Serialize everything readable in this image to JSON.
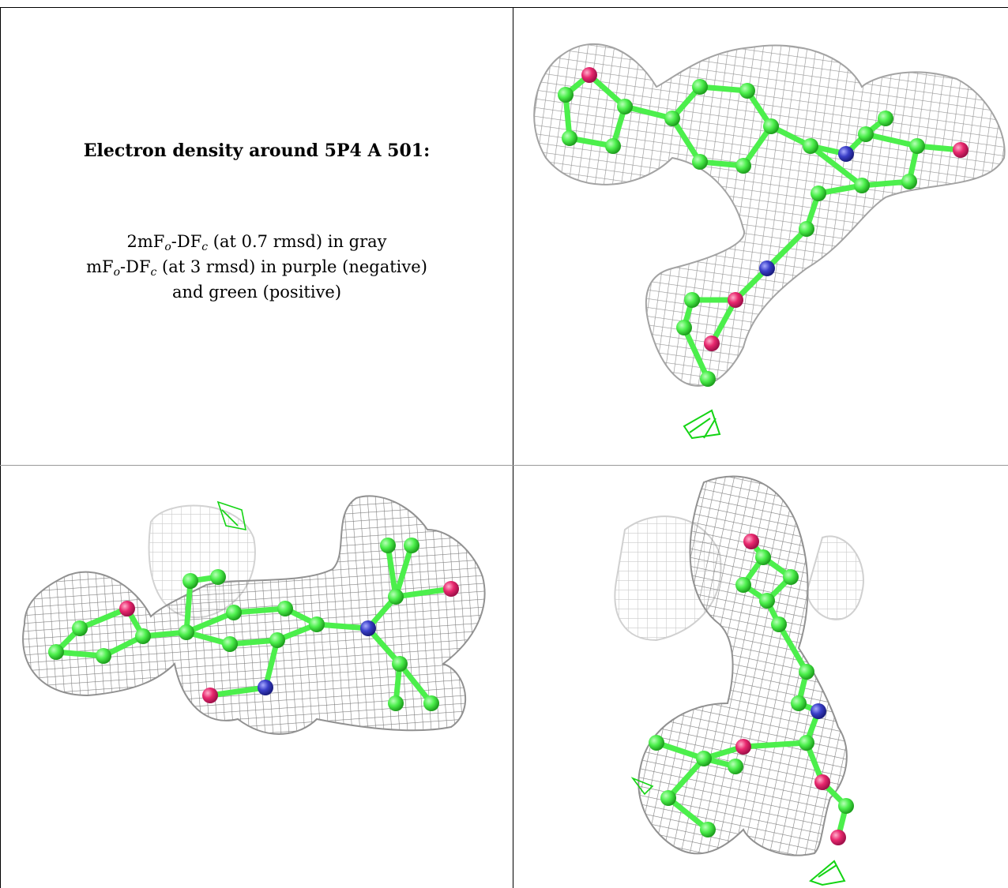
{
  "caption": {
    "heading": "Electron density around 5P4 A 501:",
    "line1": {
      "lead": "2mF",
      "sub_o": "o",
      "mid": "-DF",
      "sub_c": "c",
      "tail": " (at 0.7 rmsd) in gray"
    },
    "line2": {
      "lead": "mF",
      "sub_o": "o",
      "mid": "-DF",
      "sub_c": "c",
      "tail": " (at 3 rmsd) in purple (negative)"
    },
    "line3": "and green (positive)"
  },
  "colors": {
    "carbon": "#4cef4c",
    "oxygen": "#e8286e",
    "nitrogen": "#3a3fc8",
    "mesh_gray": "#8c8c8c",
    "positive_density": "#14d414"
  }
}
